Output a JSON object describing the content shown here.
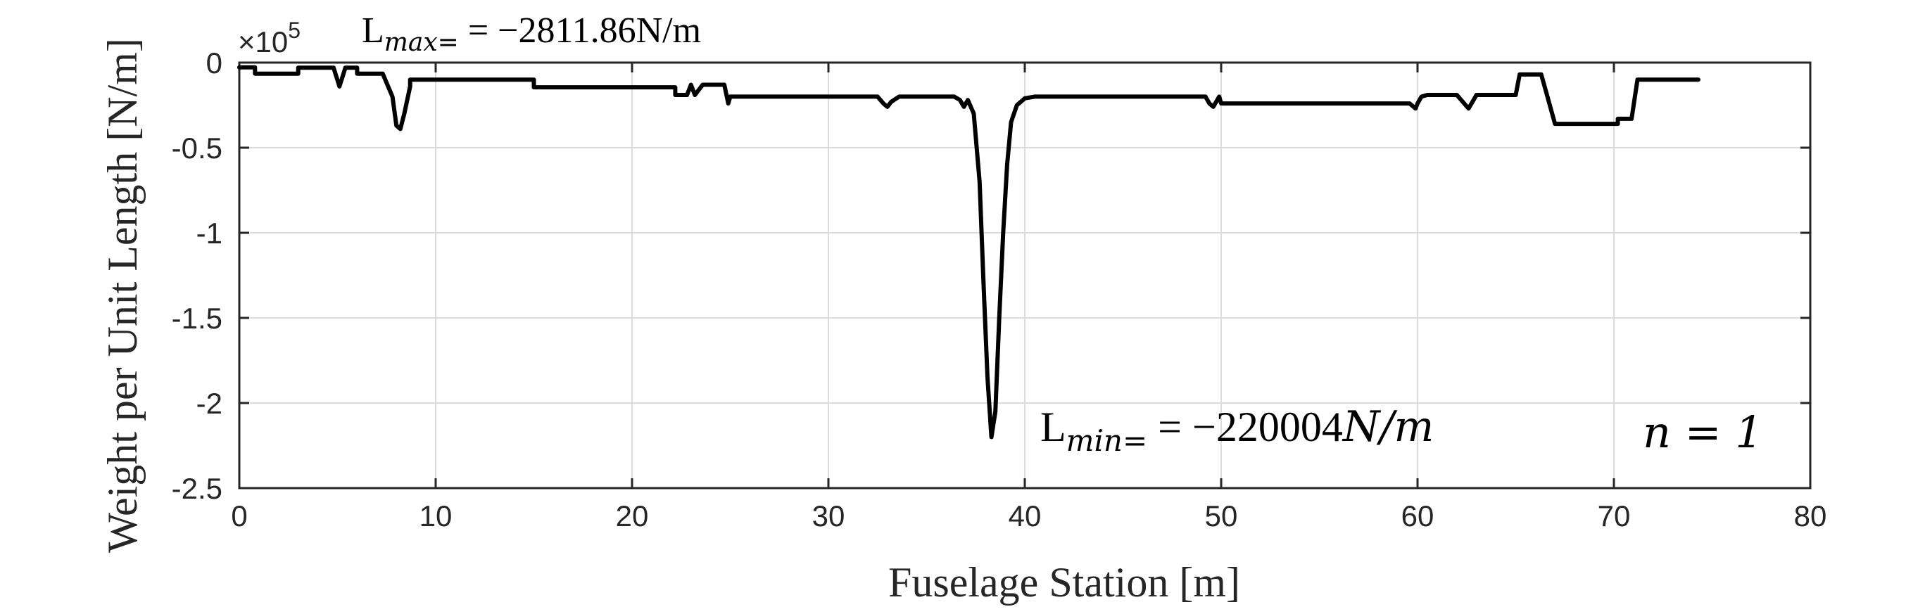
{
  "chart_data": {
    "type": "line",
    "xlabel": "Fuselage Station [m]",
    "ylabel": "Weight per Unit Length [N/m]",
    "xlim": [
      0,
      80
    ],
    "ylim": [
      -2.5,
      0
    ],
    "y_exponent_label": "×10",
    "y_exponent_power": "5",
    "x_ticks": [
      "0",
      "10",
      "20",
      "30",
      "40",
      "50",
      "60",
      "70",
      "80"
    ],
    "y_ticks": [
      "0",
      "-0.5",
      "-1",
      "-1.5",
      "-2",
      "-2.5"
    ],
    "grid": true,
    "line_color": "#000000",
    "annotations": {
      "lmax_base": "L",
      "lmax_sub": "max=",
      "lmax_value": " = −2811.86N/m",
      "lmin_base": "L",
      "lmin_sub": "min=",
      "lmin_value": " = −220004",
      "lmin_unit": "N/m",
      "n_label": "n = 1"
    },
    "series": [
      {
        "x": [
          0,
          0.8,
          0.8,
          3.0,
          3.0,
          4.8,
          5.1,
          5.4,
          5.6,
          5.6,
          6.0,
          6.0,
          7.3,
          7.8,
          8.0,
          8.2,
          8.4,
          8.7,
          8.7,
          9.0,
          9.0,
          15,
          15,
          22.2,
          22.2,
          22.8,
          23.0,
          23.2,
          23.4,
          23.6,
          23.8,
          24.0,
          24.7,
          24.9,
          25.0,
          25.0,
          32.5,
          32.8,
          33.0,
          33.2,
          33.6,
          36.4,
          36.7,
          36.9,
          37.1,
          37.4,
          37.7,
          37.9,
          38.1,
          38.3,
          38.5,
          38.7,
          38.9,
          39.1,
          39.3,
          39.6,
          40.0,
          40.5,
          49.2,
          49.4,
          49.6,
          49.8,
          49.9,
          50.0,
          50.0,
          59.6,
          59.9,
          60.0,
          60.2,
          60.5,
          61.0,
          62.0,
          62.3,
          62.6,
          62.8,
          63.0,
          63.3,
          63.6,
          64.0,
          65.0,
          65.2,
          65.2,
          66.3,
          66.3,
          67.0,
          67.0,
          70.2,
          70.2,
          70.9,
          70.9,
          71.2,
          71.2,
          74.3
        ],
        "y": [
          -0.028,
          -0.028,
          -0.065,
          -0.065,
          -0.03,
          -0.03,
          -0.14,
          -0.03,
          -0.03,
          -0.03,
          -0.03,
          -0.065,
          -0.065,
          -0.2,
          -0.37,
          -0.39,
          -0.3,
          -0.14,
          -0.1,
          -0.1,
          -0.1,
          -0.1,
          -0.145,
          -0.145,
          -0.19,
          -0.19,
          -0.13,
          -0.19,
          -0.16,
          -0.13,
          -0.13,
          -0.13,
          -0.13,
          -0.24,
          -0.2,
          -0.2,
          -0.2,
          -0.24,
          -0.26,
          -0.23,
          -0.2,
          -0.2,
          -0.22,
          -0.26,
          -0.22,
          -0.3,
          -0.7,
          -1.3,
          -1.85,
          -2.2,
          -2.05,
          -1.5,
          -1.0,
          -0.6,
          -0.35,
          -0.25,
          -0.21,
          -0.2,
          -0.2,
          -0.24,
          -0.26,
          -0.22,
          -0.2,
          -0.24,
          -0.24,
          -0.24,
          -0.27,
          -0.24,
          -0.2,
          -0.19,
          -0.19,
          -0.19,
          -0.23,
          -0.27,
          -0.23,
          -0.19,
          -0.19,
          -0.19,
          -0.19,
          -0.19,
          -0.07,
          -0.07,
          -0.07,
          -0.07,
          -0.36,
          -0.36,
          -0.36,
          -0.33,
          -0.33,
          -0.33,
          -0.1,
          -0.1,
          -0.1
        ]
      }
    ]
  }
}
